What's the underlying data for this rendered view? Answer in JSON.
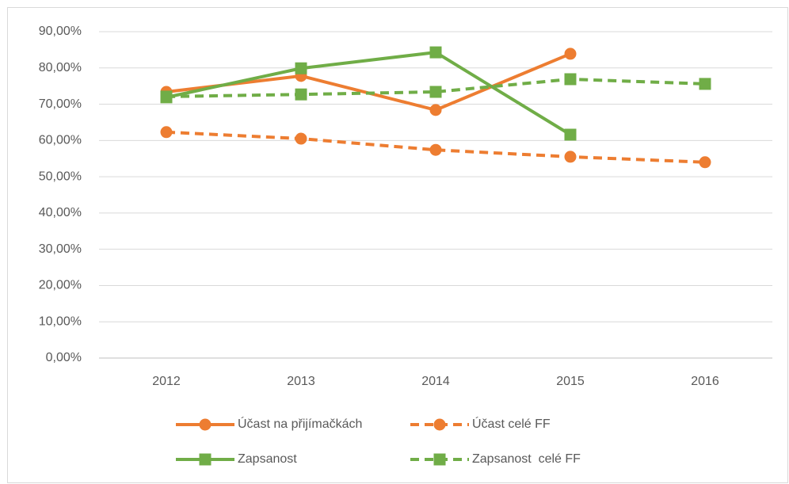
{
  "chart_data": {
    "type": "line",
    "categories": [
      "2012",
      "2013",
      "2014",
      "2015",
      "2016"
    ],
    "series": [
      {
        "name": "Účast na přijímačkách",
        "color": "#ED7D31",
        "dashed": false,
        "marker": "circle",
        "values": [
          73.4,
          77.8,
          68.4,
          83.9,
          null
        ]
      },
      {
        "name": "Účast celé FF",
        "color": "#ED7D31",
        "dashed": true,
        "marker": "circle",
        "values": [
          62.3,
          60.5,
          57.4,
          55.5,
          54.0
        ]
      },
      {
        "name": "Zapsanost",
        "color": "#70AD47",
        "dashed": false,
        "marker": "square",
        "values": [
          71.9,
          79.9,
          84.3,
          61.6,
          null
        ]
      },
      {
        "name": "Zapsanost  celé FF",
        "color": "#70AD47",
        "dashed": true,
        "marker": "square",
        "values": [
          72.1,
          72.7,
          73.4,
          76.9,
          75.6
        ]
      }
    ],
    "ylim": [
      0,
      90
    ],
    "yticks": [
      {
        "value": 0,
        "label": "0,00%"
      },
      {
        "value": 10,
        "label": "10,00%"
      },
      {
        "value": 20,
        "label": "20,00%"
      },
      {
        "value": 30,
        "label": "30,00%"
      },
      {
        "value": 40,
        "label": "40,00%"
      },
      {
        "value": 50,
        "label": "50,00%"
      },
      {
        "value": 60,
        "label": "60,00%"
      },
      {
        "value": 70,
        "label": "70,00%"
      },
      {
        "value": 80,
        "label": "80,00%"
      },
      {
        "value": 90,
        "label": "90,00%"
      }
    ],
    "grid": true
  }
}
